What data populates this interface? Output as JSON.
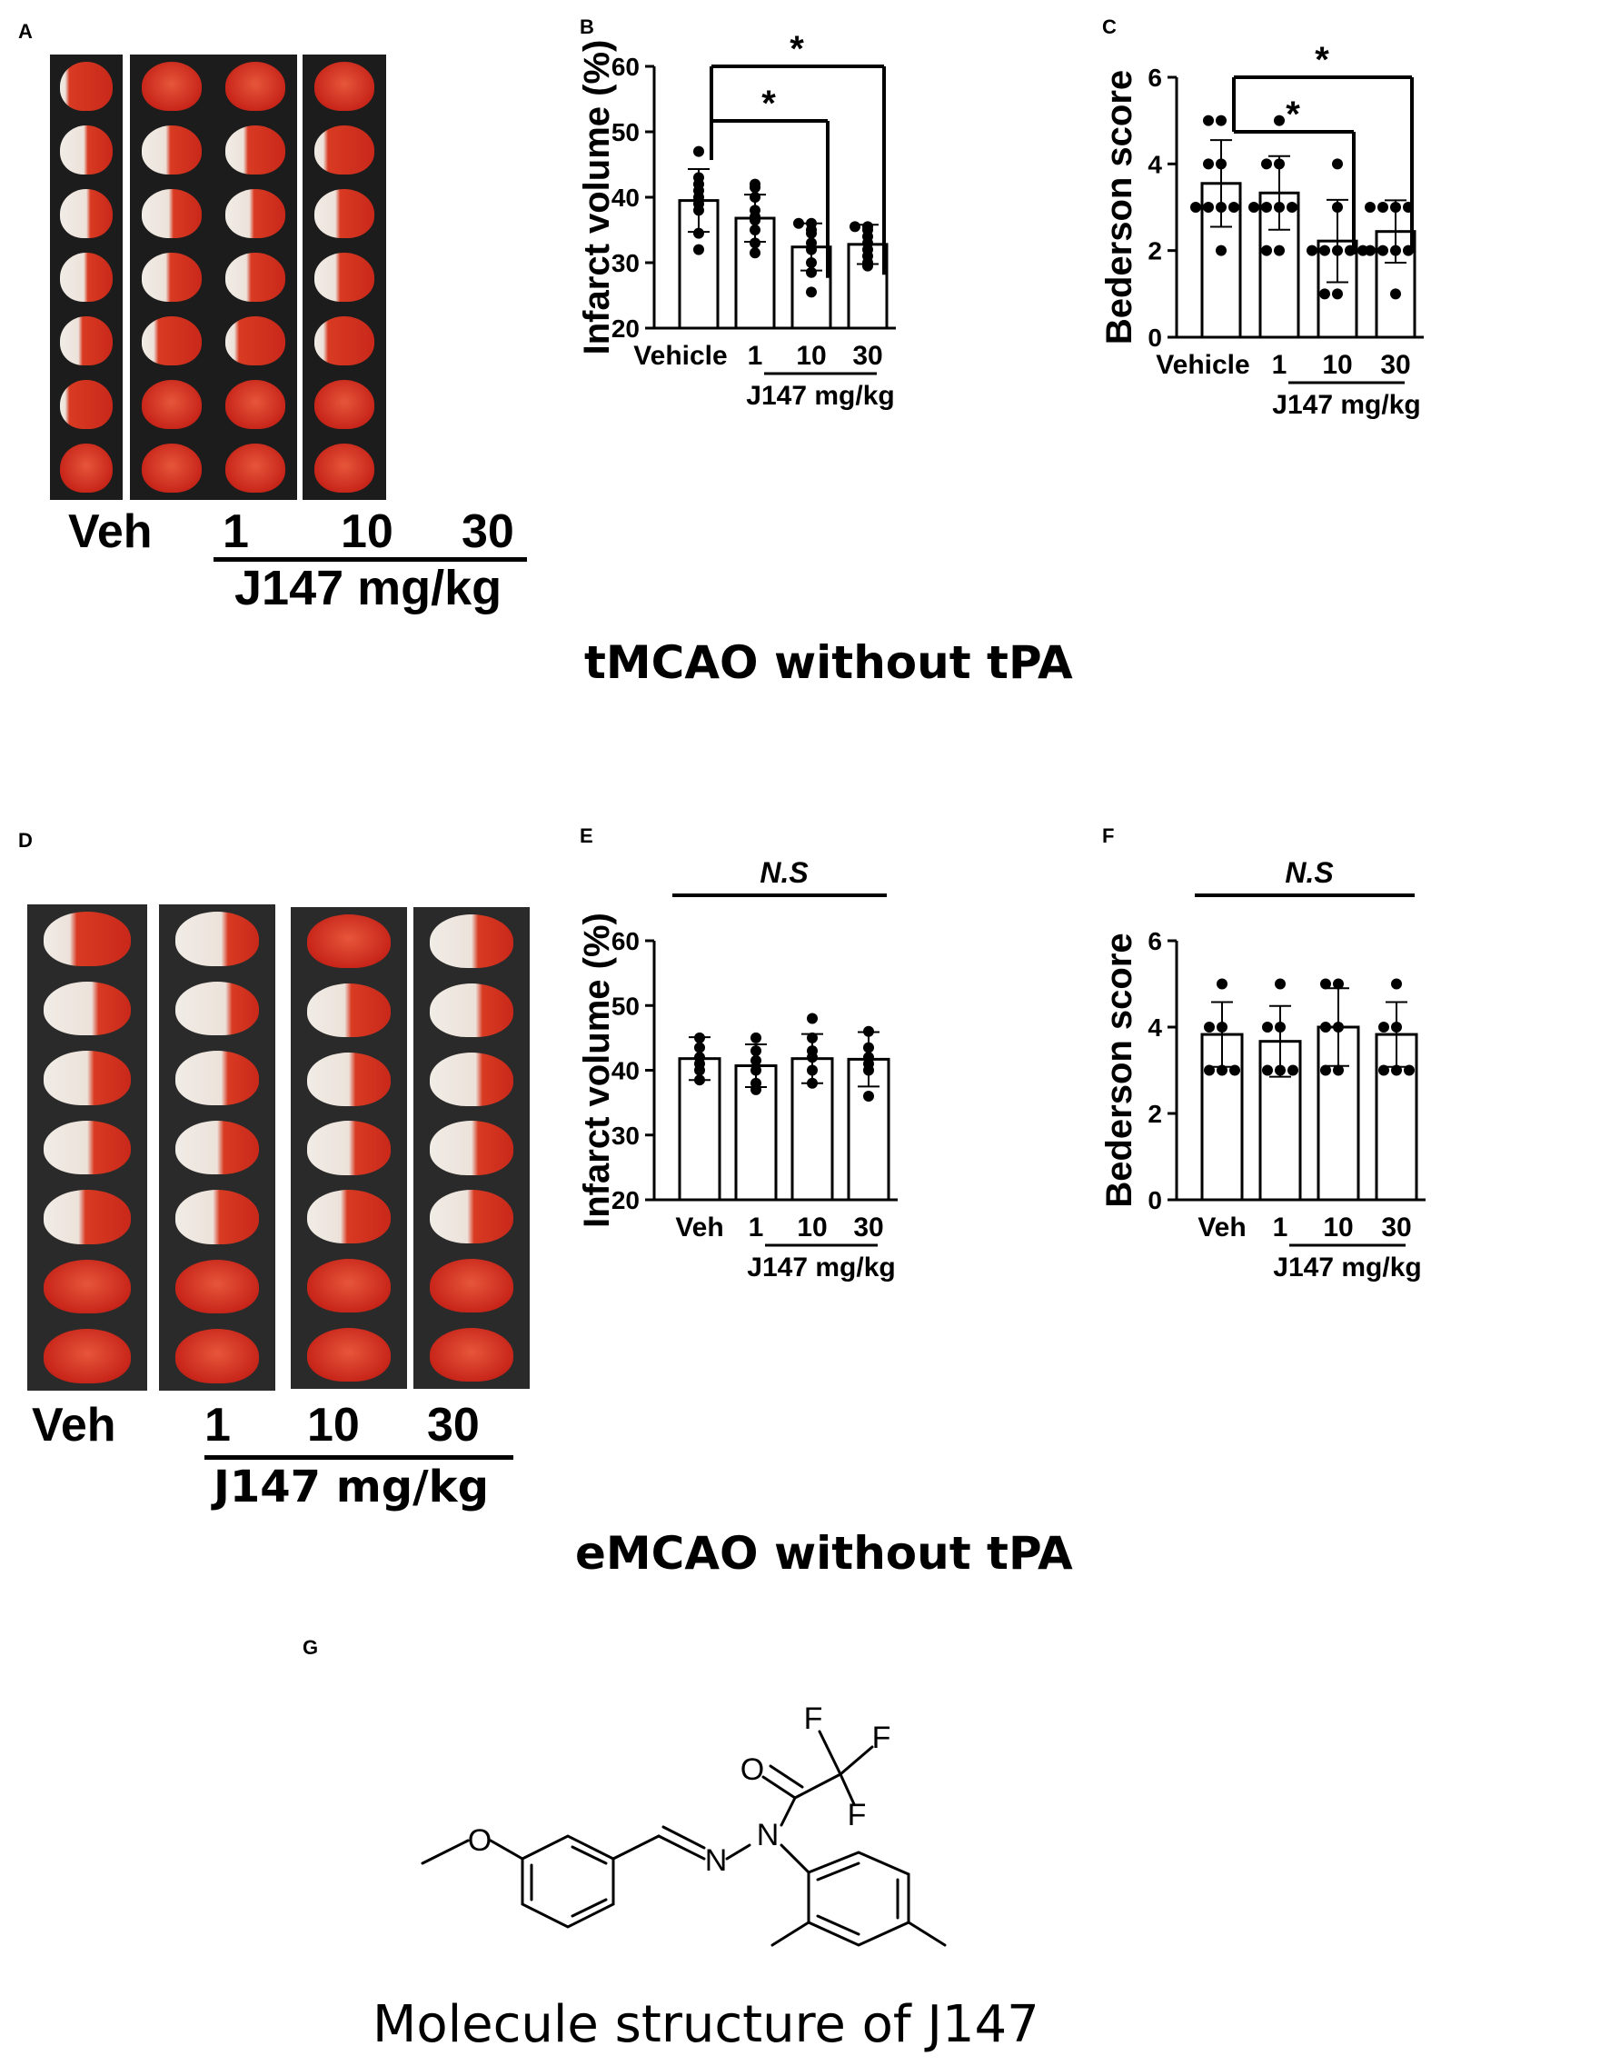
{
  "panels": {
    "A": {
      "letter": "A",
      "labels": {
        "veh": "Veh",
        "d1": "1",
        "d10": "10",
        "d30": "30",
        "group": "J147 mg/kg"
      }
    },
    "D": {
      "letter": "D",
      "labels": {
        "veh": "Veh",
        "d1": "1",
        "d10": "10",
        "d30": "30",
        "group": "J147 mg/kg"
      }
    },
    "G": {
      "letter": "G"
    }
  },
  "section_titles": {
    "top": "tMCAO without tPA",
    "bottom": "eMCAO without tPA"
  },
  "molecule": {
    "caption": "Molecule structure of J147",
    "atoms": {
      "o_methoxy": "O",
      "o_carbonyl": "O",
      "n1": "N",
      "n2": "N",
      "f1": "F",
      "f2": "F",
      "f3": "F"
    }
  },
  "chart_data": [
    {
      "panel": "B",
      "type": "bar",
      "ylabel": "Infarct volume (%)",
      "ylim": [
        20,
        60
      ],
      "yticks": [
        20,
        30,
        40,
        50,
        60
      ],
      "categories": [
        "Vehicle",
        "1",
        "10",
        "30"
      ],
      "group_label": "J147 mg/kg",
      "values": [
        39.5,
        36.8,
        32.4,
        32.8
      ],
      "sd": [
        4.8,
        3.6,
        3.6,
        3.0
      ],
      "points": [
        [
          47,
          43,
          42,
          41,
          40,
          39,
          38,
          34.5,
          32
        ],
        [
          42,
          41.5,
          40,
          38,
          37,
          36.5,
          35,
          33,
          31.5
        ],
        [
          36,
          36,
          35,
          34.5,
          33,
          32,
          30,
          28.5,
          25.5
        ],
        [
          35.5,
          35.5,
          35,
          34,
          33,
          32,
          31,
          30,
          29.5
        ]
      ],
      "significance": [
        {
          "from": "Vehicle",
          "to": "10",
          "label": "*"
        },
        {
          "from": "Vehicle",
          "to": "30",
          "label": "*"
        }
      ]
    },
    {
      "panel": "C",
      "type": "bar",
      "ylabel": "Bederson score",
      "ylim": [
        0,
        6
      ],
      "yticks": [
        0,
        2,
        4,
        6
      ],
      "categories": [
        "Vehicle",
        "1",
        "10",
        "30"
      ],
      "group_label": "J147 mg/kg",
      "values": [
        3.55,
        3.33,
        2.22,
        2.44
      ],
      "sd": [
        1.0,
        0.85,
        0.95,
        0.72
      ],
      "points": [
        [
          5,
          5,
          4,
          4,
          3,
          3,
          3,
          3,
          2
        ],
        [
          5,
          4,
          4,
          3,
          3,
          3,
          3,
          2,
          2
        ],
        [
          4,
          3,
          2,
          2,
          2,
          2,
          2,
          1,
          1
        ],
        [
          3,
          3,
          3,
          3,
          2,
          2,
          2,
          2,
          1
        ]
      ],
      "significance": [
        {
          "from": "Vehicle",
          "to": "10",
          "label": "*"
        },
        {
          "from": "Vehicle",
          "to": "30",
          "label": "*"
        }
      ]
    },
    {
      "panel": "E",
      "type": "bar",
      "ylabel": "Infarct volume (%)",
      "ylim": [
        20,
        60
      ],
      "yticks": [
        20,
        30,
        40,
        50,
        60
      ],
      "categories": [
        "Veh",
        "1",
        "10",
        "30"
      ],
      "group_label": "J147 mg/kg",
      "values": [
        41.8,
        40.7,
        41.8,
        41.7
      ],
      "sd": [
        3.3,
        3.3,
        3.8,
        4.2
      ],
      "points": [
        [
          45,
          43.5,
          42,
          41,
          40,
          38.5
        ],
        [
          45,
          43,
          41.5,
          40,
          38,
          37
        ],
        [
          48,
          45,
          43,
          42,
          40,
          38
        ],
        [
          46,
          43.5,
          42,
          41,
          40,
          36
        ]
      ],
      "significance": [
        {
          "from": "Veh",
          "to": "30",
          "label": "N.S"
        }
      ]
    },
    {
      "panel": "F",
      "type": "bar",
      "ylabel": "Bederson score",
      "ylim": [
        0,
        6
      ],
      "yticks": [
        0,
        2,
        4,
        6
      ],
      "categories": [
        "Veh",
        "1",
        "10",
        "30"
      ],
      "group_label": "J147 mg/kg",
      "values": [
        3.83,
        3.67,
        4.0,
        3.83
      ],
      "sd": [
        0.75,
        0.82,
        0.9,
        0.75
      ],
      "points": [
        [
          5,
          4,
          4,
          3,
          3,
          3
        ],
        [
          5,
          4,
          4,
          3,
          3,
          3
        ],
        [
          5,
          5,
          4,
          4,
          3,
          3
        ],
        [
          5,
          4,
          4,
          3,
          3,
          3
        ]
      ],
      "significance": [
        {
          "from": "Veh",
          "to": "30",
          "label": "N.S"
        }
      ]
    }
  ]
}
